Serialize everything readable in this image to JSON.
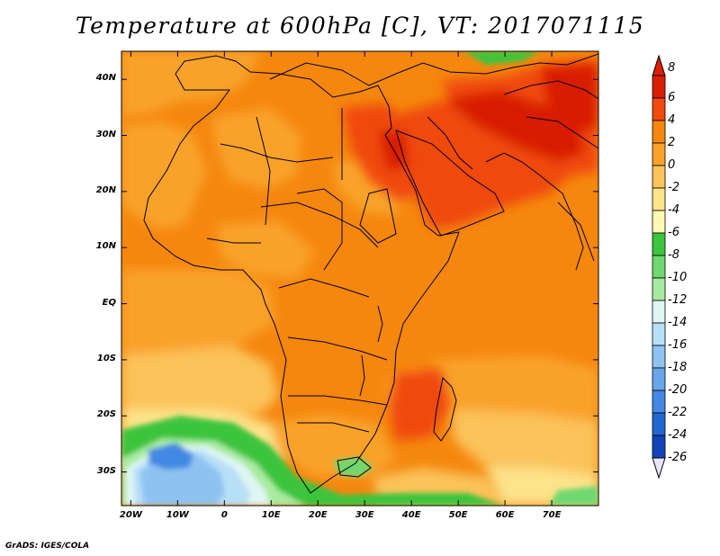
{
  "title": "Temperature at 600hPa [C], VT: 2017071115",
  "credit": "GrADS: IGES/COLA",
  "map": {
    "lon_range": [
      -22,
      80
    ],
    "lat_range": [
      -36,
      45
    ],
    "lat_ticks": [
      {
        "value": 40,
        "label": "40N"
      },
      {
        "value": 30,
        "label": "30N"
      },
      {
        "value": 20,
        "label": "20N"
      },
      {
        "value": 10,
        "label": "10N"
      },
      {
        "value": 0,
        "label": "EQ"
      },
      {
        "value": -10,
        "label": "10S"
      },
      {
        "value": -20,
        "label": "20S"
      },
      {
        "value": -30,
        "label": "30S"
      }
    ],
    "lon_ticks": [
      {
        "value": -20,
        "label": "20W"
      },
      {
        "value": -10,
        "label": "10W"
      },
      {
        "value": 0,
        "label": "0"
      },
      {
        "value": 10,
        "label": "10E"
      },
      {
        "value": 20,
        "label": "20E"
      },
      {
        "value": 30,
        "label": "30E"
      },
      {
        "value": 40,
        "label": "40E"
      },
      {
        "value": 50,
        "label": "50E"
      },
      {
        "value": 60,
        "label": "60E"
      },
      {
        "value": 70,
        "label": "70E"
      }
    ]
  },
  "colorbar": {
    "levels": [
      {
        "label": "8",
        "color": "#d81e05"
      },
      {
        "label": "6",
        "color": "#f04a0e"
      },
      {
        "label": "4",
        "color": "#f5870e"
      },
      {
        "label": "2",
        "color": "#f9a229"
      },
      {
        "label": "0",
        "color": "#fbc35a"
      },
      {
        "label": "-2",
        "color": "#fde38a"
      },
      {
        "label": "-4",
        "color": "#fdf8b4"
      },
      {
        "label": "-6",
        "color": "#3cc43c"
      },
      {
        "label": "-8",
        "color": "#6fd86f"
      },
      {
        "label": "-10",
        "color": "#a8eaa0"
      },
      {
        "label": "-12",
        "color": "#dff6f3"
      },
      {
        "label": "-14",
        "color": "#b8dff8"
      },
      {
        "label": "-16",
        "color": "#8ec3f1"
      },
      {
        "label": "-18",
        "color": "#68a6ea"
      },
      {
        "label": "-20",
        "color": "#4389e3"
      },
      {
        "label": "-22",
        "color": "#2266d2"
      },
      {
        "label": "-24",
        "color": "#1244b8"
      },
      {
        "label": "-26",
        "color": "#0a1e78"
      }
    ],
    "top_arrow_color": "#d81e05",
    "bottom_arrow_color": "#e8e4ff"
  }
}
